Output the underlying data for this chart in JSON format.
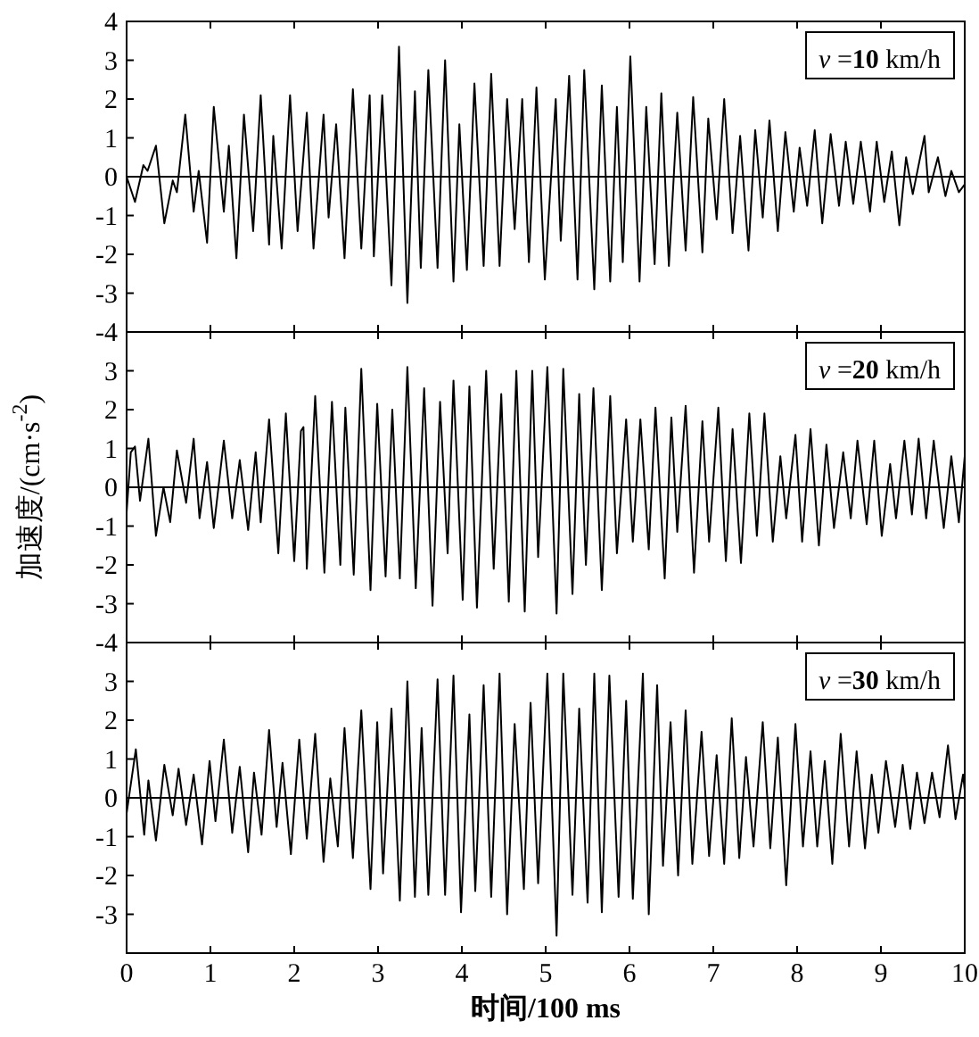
{
  "chart_data": [
    {
      "type": "line",
      "xlim": [
        0,
        10
      ],
      "ylim": [
        -4,
        4
      ],
      "xticks": [
        0,
        1,
        2,
        3,
        4,
        5,
        6,
        7,
        8,
        9,
        10
      ],
      "yticks": [
        -4,
        -3,
        -2,
        -1,
        0,
        1,
        2,
        3,
        4
      ],
      "tick_labels": "y",
      "annotations": [
        "*v* =**10** km/h"
      ],
      "ref_lines": [
        {
          "axis": "y",
          "value": 0
        }
      ],
      "series": [
        {
          "color": "#000000",
          "x": [
            0,
            0.1,
            0.2,
            0.25,
            0.35,
            0.45,
            0.55,
            0.6,
            0.7,
            0.8,
            0.86,
            0.96,
            1.04,
            1.16,
            1.22,
            1.31,
            1.4,
            1.51,
            1.6,
            1.7,
            1.75,
            1.85,
            1.95,
            2.04,
            2.15,
            2.23,
            2.35,
            2.41,
            2.5,
            2.6,
            2.7,
            2.8,
            2.9,
            2.95,
            3.05,
            3.16,
            3.25,
            3.35,
            3.44,
            3.51,
            3.6,
            3.71,
            3.8,
            3.9,
            3.97,
            4.06,
            4.15,
            4.26,
            4.35,
            4.45,
            4.54,
            4.63,
            4.72,
            4.8,
            4.89,
            4.99,
            5.12,
            5.18,
            5.28,
            5.38,
            5.46,
            5.58,
            5.67,
            5.77,
            5.85,
            5.92,
            6.01,
            6.12,
            6.2,
            6.3,
            6.38,
            6.47,
            6.57,
            6.67,
            6.76,
            6.87,
            6.94,
            7.04,
            7.13,
            7.23,
            7.32,
            7.42,
            7.5,
            7.59,
            7.67,
            7.77,
            7.86,
            7.96,
            8.03,
            8.12,
            8.21,
            8.3,
            8.4,
            8.5,
            8.58,
            8.67,
            8.76,
            8.87,
            8.95,
            9.04,
            9.13,
            9.22,
            9.3,
            9.38,
            9.52,
            9.57,
            9.68,
            9.77,
            9.84,
            9.93,
            10
          ],
          "values": [
            0,
            -0.65,
            0.3,
            0.15,
            0.8,
            -1.2,
            -0.1,
            -0.4,
            1.6,
            -0.9,
            0.15,
            -1.7,
            1.8,
            -0.9,
            0.8,
            -2.1,
            1.6,
            -1.4,
            2.1,
            -1.75,
            1.05,
            -1.85,
            2.1,
            -1.4,
            1.65,
            -1.85,
            1.6,
            -1.05,
            1.35,
            -2.1,
            2.25,
            -1.85,
            2.1,
            -2.05,
            2.1,
            -2.8,
            3.35,
            -3.25,
            2.2,
            -2.35,
            2.75,
            -2.35,
            3.0,
            -2.7,
            1.35,
            -2.4,
            2.4,
            -2.3,
            2.65,
            -2.3,
            2.0,
            -1.35,
            2.0,
            -2.2,
            2.3,
            -2.65,
            2.0,
            -1.65,
            2.6,
            -2.65,
            2.75,
            -2.9,
            2.35,
            -2.7,
            1.8,
            -2.2,
            3.1,
            -2.7,
            1.8,
            -2.25,
            2.15,
            -2.3,
            1.65,
            -1.9,
            2.05,
            -1.95,
            1.5,
            -1.1,
            2.0,
            -1.45,
            1.05,
            -1.9,
            1.2,
            -1.05,
            1.45,
            -1.4,
            1.15,
            -0.9,
            0.75,
            -0.75,
            1.2,
            -1.2,
            1.1,
            -0.75,
            0.9,
            -0.7,
            0.9,
            -0.9,
            0.9,
            -0.65,
            0.65,
            -1.25,
            0.5,
            -0.45,
            1.05,
            -0.4,
            0.5,
            -0.5,
            0.15,
            -0.4,
            -0.2
          ]
        }
      ]
    },
    {
      "type": "line",
      "xlim": [
        0,
        10
      ],
      "ylim": [
        -4,
        4
      ],
      "xticks": [
        0,
        1,
        2,
        3,
        4,
        5,
        6,
        7,
        8,
        9,
        10
      ],
      "yticks": [
        -4,
        -3,
        -2,
        -1,
        0,
        1,
        2,
        3
      ],
      "tick_labels": "y",
      "ylabel": "加速度/(cm·s$^{-2}$)",
      "annotations": [
        "*v* =**20** km/h"
      ],
      "ref_lines": [
        {
          "axis": "y",
          "value": 0
        }
      ],
      "series": [
        {
          "color": "#000000",
          "x": [
            0,
            0.05,
            0.1,
            0.16,
            0.26,
            0.35,
            0.44,
            0.52,
            0.6,
            0.71,
            0.8,
            0.87,
            0.96,
            1.04,
            1.16,
            1.26,
            1.35,
            1.45,
            1.54,
            1.6,
            1.7,
            1.81,
            1.9,
            2.0,
            2.08,
            2.11,
            2.15,
            2.25,
            2.36,
            2.45,
            2.55,
            2.61,
            2.71,
            2.8,
            2.91,
            2.99,
            3.09,
            3.17,
            3.26,
            3.35,
            3.45,
            3.55,
            3.65,
            3.74,
            3.83,
            3.9,
            4.01,
            4.09,
            4.18,
            4.29,
            4.38,
            4.47,
            4.56,
            4.65,
            4.75,
            4.84,
            4.91,
            5.02,
            5.13,
            5.21,
            5.32,
            5.4,
            5.48,
            5.57,
            5.67,
            5.77,
            5.85,
            5.96,
            6.04,
            6.13,
            6.23,
            6.31,
            6.42,
            6.5,
            6.57,
            6.67,
            6.77,
            6.87,
            6.95,
            7.06,
            7.15,
            7.23,
            7.33,
            7.43,
            7.52,
            7.61,
            7.71,
            7.8,
            7.87,
            7.98,
            8.06,
            8.16,
            8.26,
            8.35,
            8.44,
            8.55,
            8.64,
            8.72,
            8.83,
            8.92,
            9.01,
            9.11,
            9.18,
            9.28,
            9.37,
            9.45,
            9.54,
            9.63,
            9.75,
            9.84,
            9.93,
            10
          ],
          "values": [
            -0.65,
            0.9,
            1.05,
            -0.35,
            1.25,
            -1.25,
            0,
            -0.9,
            0.95,
            -0.4,
            1.25,
            -0.8,
            0.65,
            -1.05,
            1.2,
            -0.8,
            0.7,
            -1.1,
            0.9,
            -0.9,
            1.75,
            -1.7,
            1.9,
            -1.9,
            1.45,
            1.55,
            -2.1,
            2.35,
            -2.2,
            2.2,
            -2.0,
            2.05,
            -2.25,
            3.05,
            -2.65,
            2.15,
            -2.3,
            2.0,
            -2.35,
            3.1,
            -2.6,
            2.55,
            -3.05,
            2.2,
            -1.7,
            2.75,
            -2.9,
            2.6,
            -3.1,
            3.0,
            -2.1,
            2.4,
            -2.95,
            3.0,
            -3.2,
            3.0,
            -1.8,
            3.1,
            -3.25,
            3.05,
            -2.75,
            2.4,
            -2.0,
            2.55,
            -2.65,
            2.35,
            -1.7,
            1.75,
            -1.4,
            1.75,
            -1.6,
            2.05,
            -2.35,
            1.8,
            -1.15,
            2.1,
            -2.2,
            1.7,
            -1.4,
            2.05,
            -1.9,
            1.5,
            -1.95,
            1.9,
            -1.25,
            1.9,
            -1.4,
            0.8,
            -0.8,
            1.35,
            -1.4,
            1.5,
            -1.5,
            1.1,
            -1.05,
            0.9,
            -0.8,
            1.2,
            -0.95,
            1.2,
            -1.25,
            0.6,
            -0.8,
            1.2,
            -0.7,
            1.25,
            -0.8,
            1.2,
            -1.05,
            0.8,
            -0.9,
            0.8
          ]
        }
      ]
    },
    {
      "type": "line",
      "xlim": [
        0,
        10
      ],
      "ylim": [
        -4,
        4
      ],
      "xticks": [
        0,
        1,
        2,
        3,
        4,
        5,
        6,
        7,
        8,
        9,
        10
      ],
      "yticks": [
        -3,
        -2,
        -1,
        0,
        1,
        2,
        3
      ],
      "xlabel": "时间/100 ms",
      "annotations": [
        "*v* =**30** km/h"
      ],
      "ref_lines": [
        {
          "axis": "y",
          "value": 0
        }
      ],
      "series": [
        {
          "color": "#000000",
          "x": [
            0,
            0.11,
            0.21,
            0.26,
            0.35,
            0.45,
            0.55,
            0.62,
            0.71,
            0.8,
            0.9,
            0.99,
            1.06,
            1.16,
            1.26,
            1.35,
            1.45,
            1.52,
            1.61,
            1.7,
            1.79,
            1.86,
            1.96,
            2.06,
            2.15,
            2.25,
            2.35,
            2.43,
            2.52,
            2.6,
            2.7,
            2.8,
            2.91,
            2.99,
            3.06,
            3.16,
            3.26,
            3.35,
            3.44,
            3.52,
            3.6,
            3.71,
            3.8,
            3.9,
            3.99,
            4.09,
            4.16,
            4.26,
            4.35,
            4.45,
            4.54,
            4.63,
            4.74,
            4.82,
            4.91,
            5.02,
            5.13,
            5.21,
            5.32,
            5.4,
            5.5,
            5.58,
            5.67,
            5.76,
            5.87,
            5.96,
            6.04,
            6.16,
            6.23,
            6.33,
            6.4,
            6.49,
            6.58,
            6.67,
            6.75,
            6.86,
            6.95,
            7.04,
            7.13,
            7.22,
            7.31,
            7.39,
            7.48,
            7.59,
            7.68,
            7.77,
            7.87,
            7.98,
            8.07,
            8.16,
            8.24,
            8.33,
            8.42,
            8.52,
            8.62,
            8.71,
            8.81,
            8.89,
            8.97,
            9.06,
            9.17,
            9.26,
            9.35,
            9.43,
            9.52,
            9.61,
            9.7,
            9.8,
            9.89,
            9.98,
            10
          ],
          "values": [
            -0.4,
            1.25,
            -0.95,
            0.45,
            -1.1,
            0.85,
            -0.45,
            0.75,
            -0.7,
            0.6,
            -1.2,
            0.95,
            -0.6,
            1.5,
            -0.9,
            0.8,
            -1.4,
            0.65,
            -0.95,
            1.75,
            -0.75,
            0.9,
            -1.45,
            1.5,
            -1.05,
            1.65,
            -1.65,
            0.5,
            -1.25,
            1.8,
            -1.55,
            2.25,
            -2.35,
            1.95,
            -1.95,
            2.3,
            -2.65,
            3.0,
            -2.55,
            1.8,
            -2.5,
            3.05,
            -2.5,
            3.15,
            -2.95,
            2.15,
            -2.4,
            2.9,
            -2.55,
            3.2,
            -3.0,
            1.9,
            -2.35,
            2.45,
            -2.2,
            3.2,
            -3.55,
            3.2,
            -2.5,
            2.3,
            -2.7,
            3.2,
            -2.95,
            3.15,
            -2.55,
            2.5,
            -2.6,
            3.2,
            -3.0,
            2.9,
            -1.75,
            1.95,
            -2.0,
            2.25,
            -1.7,
            1.7,
            -1.5,
            1.1,
            -1.7,
            2.05,
            -1.55,
            1.05,
            -1.25,
            1.95,
            -1.3,
            1.55,
            -2.25,
            1.9,
            -1.25,
            1.2,
            -1.25,
            0.95,
            -1.7,
            1.65,
            -1.25,
            1.2,
            -1.3,
            0.6,
            -0.9,
            0.95,
            -0.75,
            0.85,
            -0.8,
            0.65,
            -0.65,
            0.65,
            -0.5,
            1.35,
            -0.55,
            0.6,
            0.2
          ]
        }
      ]
    }
  ]
}
